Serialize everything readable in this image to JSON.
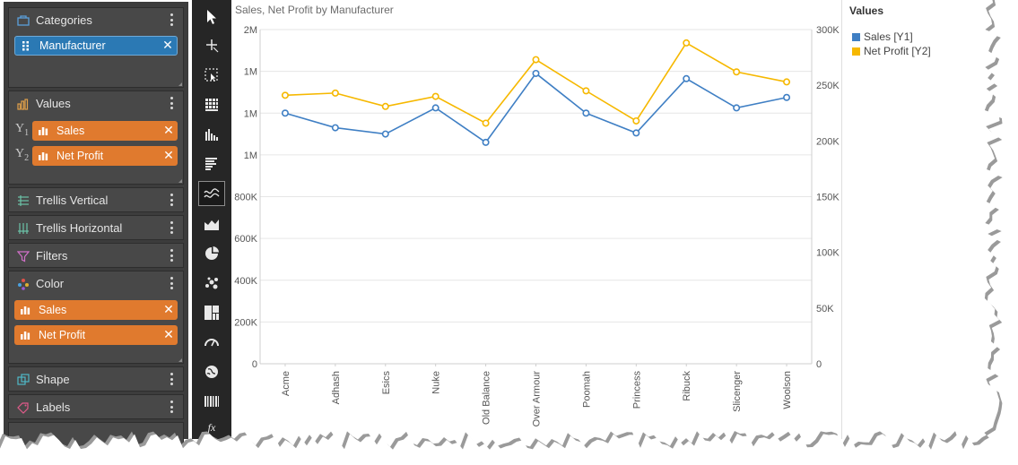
{
  "panel": {
    "categories": {
      "title": "Categories",
      "pill": "Manufacturer"
    },
    "values": {
      "title": "Values",
      "y1_tag": "Y",
      "y1_sub": "1",
      "y2_tag": "Y",
      "y2_sub": "2",
      "y1_pill": "Sales",
      "y2_pill": "Net Profit"
    },
    "trellis_vertical": "Trellis Vertical",
    "trellis_horizontal": "Trellis Horizontal",
    "filters": "Filters",
    "color": {
      "title": "Color",
      "pill1": "Sales",
      "pill2": "Net Profit"
    },
    "shape": "Shape",
    "labels": "Labels"
  },
  "toolbar": {
    "icons": [
      "pointer-icon",
      "crosshair-icon",
      "select-region-icon",
      "grid-table-icon",
      "column-chart-icon",
      "bar-chart-icon",
      "line-chart-icon",
      "area-chart-icon",
      "pie-chart-icon",
      "scatter-chart-icon",
      "treemap-icon",
      "gauge-icon",
      "globe-icon",
      "barcode-icon",
      "fx-icon"
    ],
    "fx_label": "fx"
  },
  "legend": {
    "title": "Values",
    "items": [
      {
        "label": "Sales [Y1]",
        "color": "#3f7fc4"
      },
      {
        "label": "Net Profit [Y2]",
        "color": "#f6b800"
      }
    ]
  },
  "colors": {
    "panel_bg": "#3c3c3c",
    "pill_blue": "#2b79b4",
    "pill_orange": "#e07a2e",
    "sales": "#3f7fc4",
    "net_profit": "#f6b800"
  },
  "chart_data": {
    "type": "line",
    "title": "Sales, Net Profit by Manufacturer",
    "categories": [
      "Acme",
      "Adhash",
      "Esics",
      "Nuke",
      "Old Balance",
      "Over Armour",
      "Poomah",
      "Princess",
      "Ribuck",
      "Slicenger",
      "Woolson"
    ],
    "series": [
      {
        "name": "Sales [Y1]",
        "axis": "y1",
        "values": [
          1200000,
          1130000,
          1100000,
          1225000,
          1060000,
          1390000,
          1200000,
          1105000,
          1365000,
          1225000,
          1275000
        ]
      },
      {
        "name": "Net Profit [Y2]",
        "axis": "y2",
        "values": [
          241000,
          243000,
          231000,
          240000,
          216000,
          273000,
          245000,
          218000,
          288000,
          262000,
          253000
        ]
      }
    ],
    "y1_ticks": [
      "0",
      "200K",
      "400K",
      "600K",
      "800K",
      "1M",
      "1M",
      "1M",
      "2M"
    ],
    "y1_tick_values": [
      0,
      200000,
      400000,
      600000,
      800000,
      1000000,
      1200000,
      1400000,
      1600000
    ],
    "y1_range": [
      0,
      1600000
    ],
    "y2_ticks": [
      "0",
      "50K",
      "100K",
      "150K",
      "200K",
      "250K",
      "300K"
    ],
    "y2_tick_values": [
      0,
      50000,
      100000,
      150000,
      200000,
      250000,
      300000
    ],
    "y2_range": [
      0,
      300000
    ],
    "grid": true,
    "legend_position": "right"
  }
}
